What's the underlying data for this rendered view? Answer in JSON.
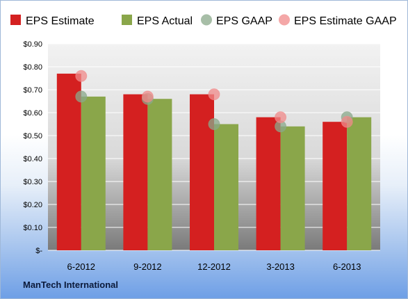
{
  "footer": {
    "company": "ManTech International"
  },
  "chart_data": {
    "type": "bar",
    "title": "",
    "xlabel": "",
    "ylabel": "",
    "categories": [
      "6-2012",
      "9-2012",
      "12-2012",
      "3-2013",
      "6-2013"
    ],
    "ylim": [
      0,
      0.9
    ],
    "yticks": [
      0,
      0.1,
      0.2,
      0.3,
      0.4,
      0.5,
      0.6,
      0.7,
      0.8,
      0.9
    ],
    "ytick_labels": [
      "$-",
      "$0.10",
      "$0.20",
      "$0.30",
      "$0.40",
      "$0.50",
      "$0.60",
      "$0.70",
      "$0.80",
      "$0.90"
    ],
    "grid": true,
    "legend_position": "top",
    "series": [
      {
        "name": "EPS Estimate",
        "kind": "bar",
        "color": "#d42020",
        "values": [
          0.77,
          0.68,
          0.68,
          0.58,
          0.56
        ]
      },
      {
        "name": "EPS Actual",
        "kind": "bar",
        "color": "#8aa64a",
        "values": [
          0.67,
          0.66,
          0.55,
          0.54,
          0.58
        ]
      },
      {
        "name": "EPS GAAP",
        "kind": "marker",
        "color": "#8aa88a",
        "values": [
          0.67,
          0.66,
          0.55,
          0.54,
          0.58
        ]
      },
      {
        "name": "EPS Estimate GAAP",
        "kind": "marker",
        "color": "#f08a8a",
        "values": [
          0.76,
          0.67,
          0.68,
          0.58,
          0.56
        ]
      }
    ]
  }
}
